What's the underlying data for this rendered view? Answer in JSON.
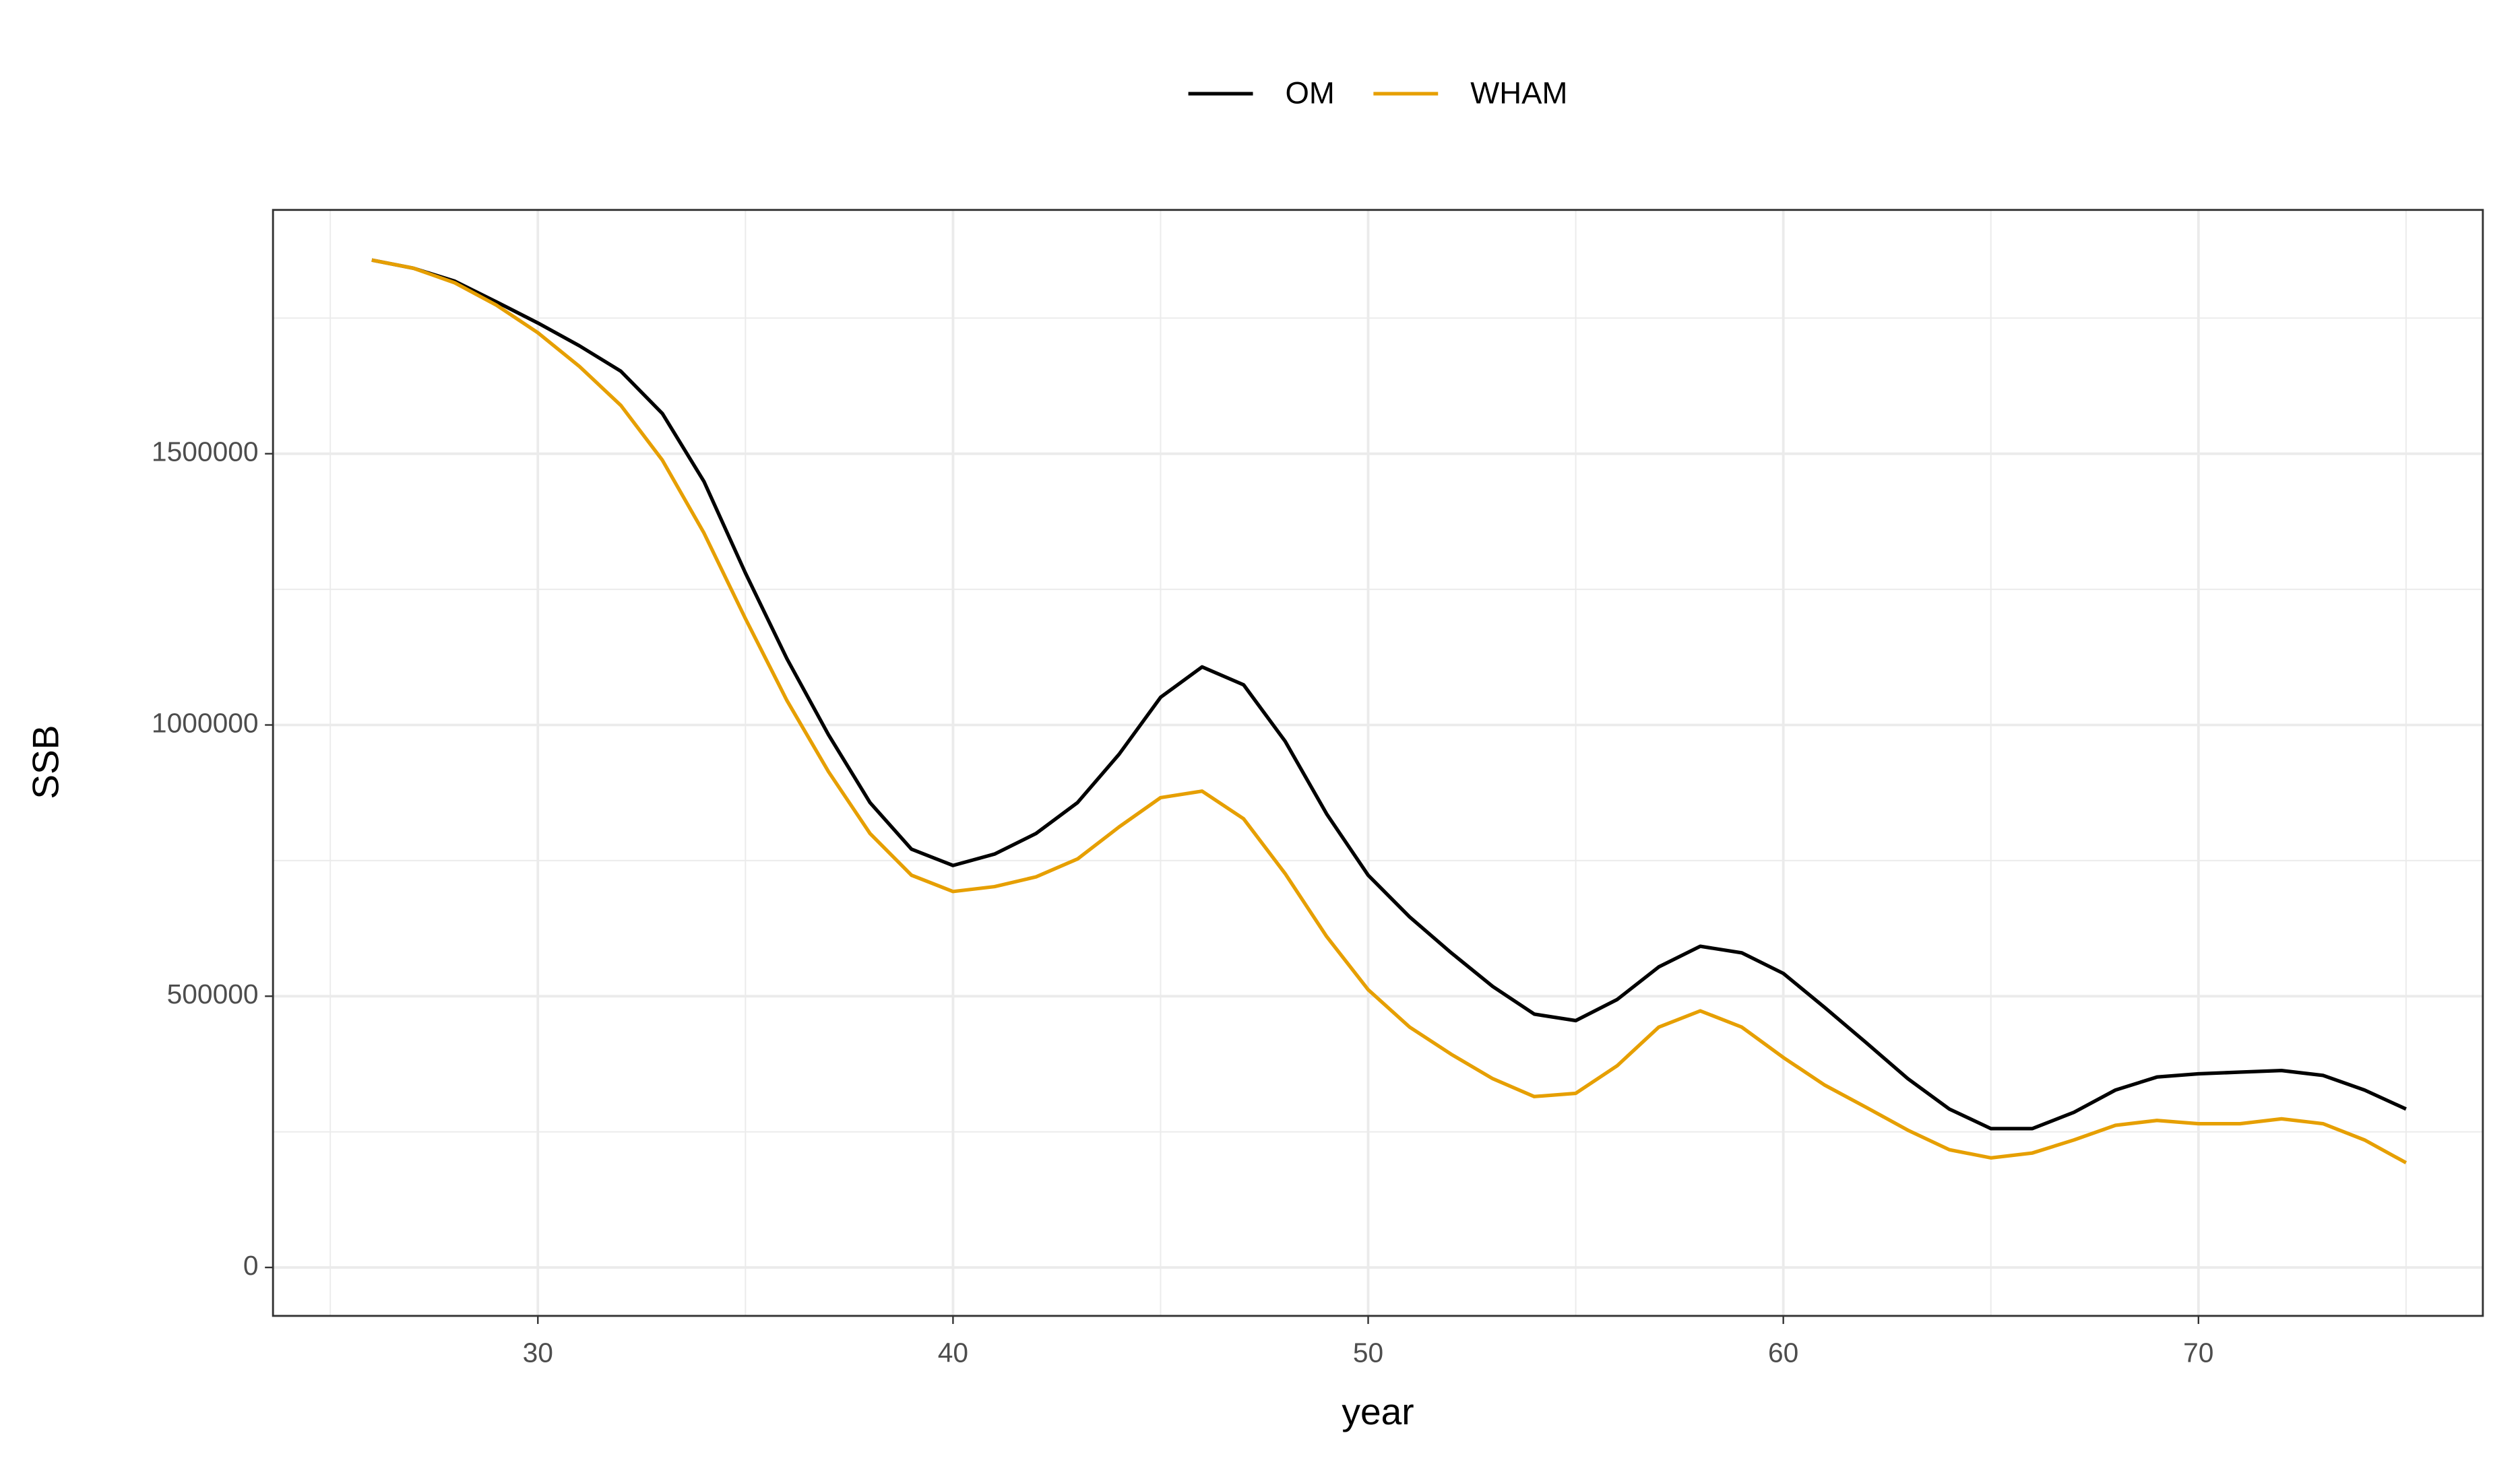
{
  "chart_data": {
    "type": "line",
    "x_label": "year",
    "y_label": "SSB",
    "x": [
      26,
      27,
      28,
      29,
      30,
      31,
      32,
      33,
      34,
      35,
      36,
      37,
      38,
      39,
      40,
      41,
      42,
      43,
      44,
      45,
      46,
      47,
      48,
      49,
      50,
      51,
      52,
      53,
      54,
      55,
      56,
      57,
      58,
      59,
      60,
      61,
      62,
      63,
      64,
      65,
      66,
      67,
      68,
      69,
      70,
      71,
      72,
      73,
      74,
      75
    ],
    "series": [
      {
        "name": "OM",
        "color": "#000000",
        "values": [
          1857000,
          1842000,
          1818000,
          1780000,
          1741000,
          1699000,
          1652000,
          1574000,
          1449000,
          1280000,
          1122000,
          982000,
          857000,
          771000,
          741000,
          762000,
          800000,
          857000,
          946000,
          1051000,
          1107000,
          1074000,
          970000,
          836000,
          723000,
          646000,
          580000,
          518000,
          467000,
          455000,
          494000,
          554000,
          592000,
          580000,
          542000,
          479000,
          414000,
          348000,
          292000,
          256000,
          256000,
          286000,
          327000,
          351000,
          357000,
          360000,
          363000,
          354000,
          327000,
          292000
        ]
      },
      {
        "name": "WHAM",
        "color": "#E69F00",
        "values": [
          1857000,
          1842000,
          1815000,
          1774000,
          1723000,
          1661000,
          1589000,
          1488000,
          1354000,
          1196000,
          1045000,
          914000,
          800000,
          723000,
          693000,
          702000,
          720000,
          753000,
          812000,
          866000,
          878000,
          827000,
          726000,
          610000,
          512000,
          443000,
          393000,
          348000,
          315000,
          321000,
          372000,
          443000,
          473000,
          443000,
          387000,
          336000,
          295000,
          253000,
          217000,
          202000,
          211000,
          235000,
          262000,
          271000,
          265000,
          265000,
          274000,
          265000,
          235000,
          193000
        ]
      }
    ],
    "xlim": [
      23.62,
      76.85
    ],
    "ylim": [
      -89286,
      1949405
    ],
    "xticks": [
      30,
      40,
      50,
      60,
      70
    ],
    "yticks": [
      0,
      500000,
      1000000,
      1500000
    ],
    "grid": true,
    "legend": "top"
  }
}
